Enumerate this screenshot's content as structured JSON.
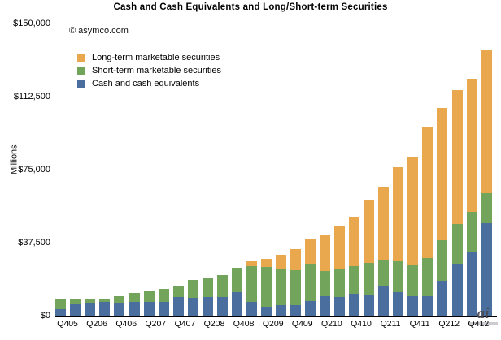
{
  "copyright": "© asymco.com",
  "watermark": "ai",
  "chart_data": {
    "type": "bar",
    "subtype": "stacked",
    "title": "Cash and Cash Equivalents and Long/Short-term Securities",
    "xlabel": "",
    "ylabel": "Millions",
    "units": "$ millions",
    "ylim": [
      0,
      150000
    ],
    "grid": true,
    "gridline_interval": 37500,
    "y_ticks": [
      {
        "value": 150000,
        "label": "$150,000"
      },
      {
        "value": 112500,
        "label": "$112,500"
      },
      {
        "value": 75000,
        "label": "$75,000"
      },
      {
        "value": 37500,
        "label": "$37,500"
      },
      {
        "value": 0,
        "label": "$0"
      }
    ],
    "categories": [
      "Q305",
      "Q405",
      "Q106",
      "Q206",
      "Q306",
      "Q406",
      "Q107",
      "Q207",
      "Q307",
      "Q407",
      "Q108",
      "Q208",
      "Q308",
      "Q408",
      "Q109",
      "Q209",
      "Q309",
      "Q409",
      "Q110",
      "Q210",
      "Q310",
      "Q410",
      "Q111",
      "Q211",
      "Q311",
      "Q411",
      "Q112",
      "Q212",
      "Q312",
      "Q412"
    ],
    "x_tick_labels_shown": [
      "Q405",
      "Q206",
      "Q406",
      "Q207",
      "Q407",
      "Q208",
      "Q408",
      "Q209",
      "Q409",
      "Q210",
      "Q410",
      "Q211",
      "Q411",
      "Q212",
      "Q412"
    ],
    "x_tick_label_every": 2,
    "legend_position": "top-left-inside",
    "legend_order_top_to_bottom": [
      "Long-term marketable securities",
      "Short-term marketable securities",
      "Cash and cash equivalents"
    ],
    "series": [
      {
        "name": "Cash and cash equivalents",
        "color": "#4a6f9f",
        "stack_position": "bottom",
        "values": [
          3500,
          5800,
          6400,
          6900,
          6400,
          7000,
          7100,
          7100,
          9400,
          9200,
          9400,
          9600,
          11900,
          7200,
          4500,
          5600,
          5300,
          7600,
          10100,
          9700,
          11300,
          10700,
          15000,
          12100,
          9800,
          9800,
          17800,
          26800,
          32900,
          47300
        ]
      },
      {
        "name": "Short-term marketable securities",
        "color": "#72a45c",
        "stack_position": "middle",
        "values": [
          4800,
          2900,
          1800,
          2000,
          3700,
          4700,
          5500,
          6700,
          6000,
          9200,
          10000,
          11200,
          12600,
          18400,
          20300,
          18600,
          18200,
          18900,
          12900,
          14400,
          14300,
          16200,
          13300,
          15700,
          16000,
          19600,
          20800,
          20100,
          20300,
          15800
        ]
      },
      {
        "name": "Long-term marketable securities",
        "color": "#eaa84e",
        "stack_position": "top",
        "values": [
          0,
          0,
          0,
          0,
          0,
          0,
          0,
          0,
          0,
          0,
          0,
          0,
          0,
          2500,
          4200,
          7000,
          10500,
          13300,
          18600,
          21700,
          25400,
          32700,
          37500,
          48300,
          55600,
          67800,
          67900,
          68800,
          68300,
          73000
        ]
      }
    ]
  }
}
